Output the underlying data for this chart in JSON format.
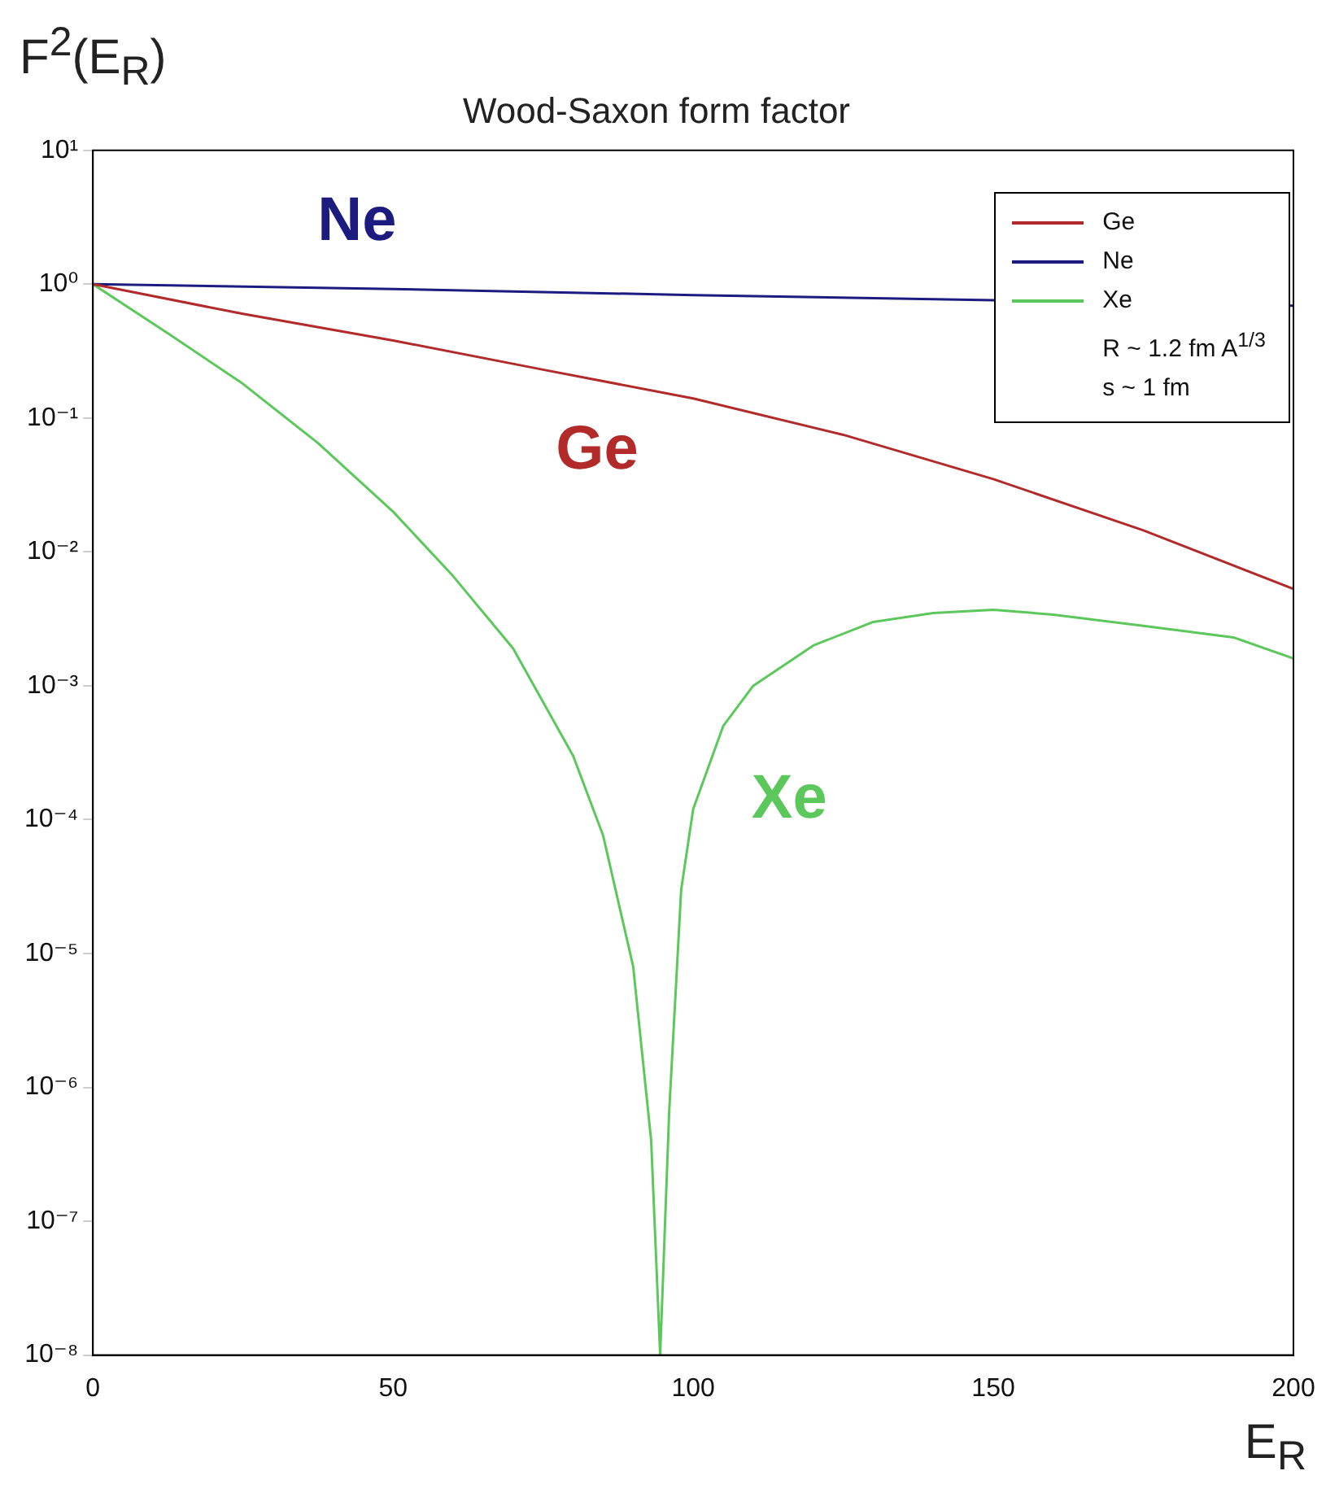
{
  "chart_data": {
    "type": "line",
    "title": "Wood-Saxon form factor",
    "xlabel": "E$_{R}$",
    "ylabel": "F$^{2}$(E$_{R}$)",
    "log": "y",
    "legend": "top right",
    "xlim": [
      0,
      200
    ],
    "xticks": [
      0,
      50,
      100,
      150,
      200
    ],
    "ylim": [
      1e-08,
      10
    ],
    "yticks": [
      {
        "value": 10,
        "label": "10¹"
      },
      {
        "value": 1,
        "label": "10⁰"
      },
      {
        "value": 0.1,
        "label": "10⁻¹"
      },
      {
        "value": 0.01,
        "label": "10⁻²"
      },
      {
        "value": 0.001,
        "label": "10⁻³"
      },
      {
        "value": 0.0001,
        "label": "10⁻⁴"
      },
      {
        "value": 1e-05,
        "label": "10⁻⁵"
      },
      {
        "value": 1e-06,
        "label": "10⁻⁶"
      },
      {
        "value": 1e-07,
        "label": "10⁻⁷"
      },
      {
        "value": 1e-08,
        "label": "10⁻⁸"
      }
    ],
    "series": [
      {
        "name": "Ge",
        "color": "#b22a2a",
        "x": [
          0,
          25,
          50,
          75,
          100,
          125,
          150,
          175,
          200
        ],
        "values": [
          1,
          0.6,
          0.38,
          0.23,
          0.14,
          0.075,
          0.035,
          0.0145,
          0.0053
        ]
      },
      {
        "name": "Ne",
        "color": "#1c1c80",
        "x": [
          0,
          50,
          100,
          150,
          200
        ],
        "values": [
          1,
          0.92,
          0.83,
          0.76,
          0.69
        ]
      },
      {
        "name": "Xe",
        "color": "#5cc85c",
        "x": [
          0,
          12.5,
          25,
          37.5,
          50,
          60,
          70,
          80,
          85,
          90,
          93,
          94.5,
          96,
          98,
          100,
          105,
          110,
          120,
          130,
          140,
          150,
          160,
          175,
          190,
          200
        ],
        "values": [
          1,
          0.43,
          0.18,
          0.065,
          0.02,
          0.0066,
          0.0019,
          0.0003,
          7.6e-05,
          8e-06,
          4e-07,
          1e-08,
          6.6e-07,
          3e-05,
          0.00012,
          0.0005,
          0.001,
          0.002,
          0.003,
          0.0035,
          0.0037,
          0.0034,
          0.0028,
          0.0023,
          0.0016
        ]
      }
    ],
    "annotations": [
      "R ~ 1.2 fm  A$^{1/3}$",
      "s ~ 1 fm"
    ]
  }
}
